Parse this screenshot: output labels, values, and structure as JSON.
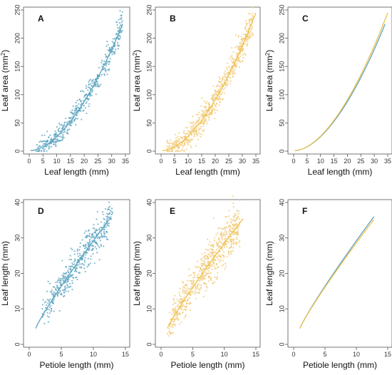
{
  "colors": {
    "blue": "#5aa3bf",
    "yellow": "#f2c873",
    "yellow_line": "#f0c24f"
  },
  "chart_data": [
    {
      "panel": "A",
      "type": "scatter",
      "xlabel": "Leaf length (mm)",
      "ylabel": "Leaf area (mm2)",
      "xlim": [
        0,
        35
      ],
      "ylim": [
        0,
        250
      ],
      "xticks": [
        0,
        5,
        10,
        15,
        20,
        25,
        30,
        35
      ],
      "yticks": [
        0,
        50,
        100,
        150,
        200,
        250
      ],
      "scatter": {
        "x_range": [
          2,
          34
        ],
        "n": 450,
        "noise": 13,
        "color": "blue"
      },
      "lines": [
        {
          "x": [
            0.5,
            34
          ],
          "y": [
            1.0,
            225
          ]
        }
      ],
      "fit": {
        "power": 1.75,
        "x0": 0.5,
        "x1": 34,
        "y0": 1.0,
        "y1": 225
      },
      "line_colors": [
        "blue"
      ]
    },
    {
      "panel": "B",
      "type": "scatter",
      "xlabel": "Leaf length (mm)",
      "ylabel": "Leaf area (mm2)",
      "xlim": [
        0,
        35
      ],
      "ylim": [
        0,
        250
      ],
      "xticks": [
        0,
        5,
        10,
        15,
        20,
        25,
        30,
        35
      ],
      "yticks": [
        0,
        50,
        100,
        150,
        200,
        250
      ],
      "scatter": {
        "x_range": [
          2,
          34
        ],
        "n": 650,
        "noise": 14,
        "color": "yellow"
      },
      "lines": [
        {
          "x": [
            0.5,
            35
          ],
          "y": [
            1.0,
            245
          ]
        }
      ],
      "fit": {
        "power": 1.75,
        "x0": 0.5,
        "x1": 35,
        "y0": 1.0,
        "y1": 245
      },
      "line_colors": [
        "yellow_line"
      ]
    },
    {
      "panel": "C",
      "type": "line",
      "xlabel": "Leaf length (mm)",
      "ylabel": "Leaf area (mm2)",
      "xlim": [
        0,
        35
      ],
      "ylim": [
        0,
        250
      ],
      "xticks": [
        0,
        5,
        10,
        15,
        20,
        25,
        30,
        35
      ],
      "yticks": [
        0,
        50,
        100,
        150,
        200,
        250
      ],
      "lines": [
        {
          "x": [
            0.5,
            34
          ],
          "y": [
            1.0,
            225
          ]
        },
        {
          "x": [
            0.5,
            35
          ],
          "y": [
            1.0,
            245
          ]
        }
      ],
      "fits": [
        {
          "power": 1.75,
          "x0": 0.5,
          "x1": 34,
          "y0": 1.0,
          "y1": 225
        },
        {
          "power": 1.75,
          "x0": 0.5,
          "x1": 35,
          "y0": 1.0,
          "y1": 245
        }
      ],
      "line_colors": [
        "blue",
        "yellow_line"
      ]
    },
    {
      "panel": "D",
      "type": "scatter",
      "xlabel": "Petiole length (mm)",
      "ylabel": "Leaf length (mm)",
      "xlim": [
        0,
        15
      ],
      "ylim": [
        0,
        40
      ],
      "xticks": [
        0,
        5,
        10,
        15
      ],
      "yticks": [
        0,
        10,
        20,
        30,
        40
      ],
      "scatter": {
        "x_range": [
          2,
          13
        ],
        "n": 450,
        "noise": 3.2,
        "color": "blue"
      },
      "lines": [
        {
          "x": [
            1,
            12.8
          ],
          "y": [
            4.5,
            36
          ]
        }
      ],
      "fit": {
        "power": 0.9,
        "x0": 1,
        "x1": 12.8,
        "y0": 4.5,
        "y1": 36
      },
      "line_colors": [
        "blue"
      ]
    },
    {
      "panel": "E",
      "type": "scatter",
      "xlabel": "Petiole length (mm)",
      "ylabel": "Leaf length (mm)",
      "xlim": [
        0,
        15
      ],
      "ylim": [
        0,
        40
      ],
      "xticks": [
        0,
        5,
        10,
        15
      ],
      "yticks": [
        0,
        10,
        20,
        30,
        40
      ],
      "scatter": {
        "x_range": [
          1,
          12.5
        ],
        "n": 650,
        "noise": 3.4,
        "color": "yellow"
      },
      "lines": [
        {
          "x": [
            1,
            13
          ],
          "y": [
            4.5,
            35.5
          ]
        }
      ],
      "fit": {
        "power": 0.9,
        "x0": 1,
        "x1": 13,
        "y0": 4.5,
        "y1": 35.5
      },
      "line_colors": [
        "yellow_line"
      ]
    },
    {
      "panel": "F",
      "type": "line",
      "xlabel": "Petiole length (mm)",
      "ylabel": "Leaf length (mm)",
      "xlim": [
        0,
        15
      ],
      "ylim": [
        0,
        40
      ],
      "xticks": [
        0,
        5,
        10,
        15
      ],
      "yticks": [
        0,
        10,
        20,
        30,
        40
      ],
      "lines": [
        {
          "x": [
            1,
            12.8
          ],
          "y": [
            4.5,
            36
          ]
        },
        {
          "x": [
            1,
            12.8
          ],
          "y": [
            4.5,
            35.2
          ]
        }
      ],
      "fits": [
        {
          "power": 0.9,
          "x0": 1,
          "x1": 12.8,
          "y0": 4.5,
          "y1": 36
        },
        {
          "power": 0.9,
          "x0": 1,
          "x1": 12.8,
          "y0": 4.5,
          "y1": 35.2
        }
      ],
      "line_colors": [
        "blue",
        "yellow_line"
      ]
    }
  ]
}
